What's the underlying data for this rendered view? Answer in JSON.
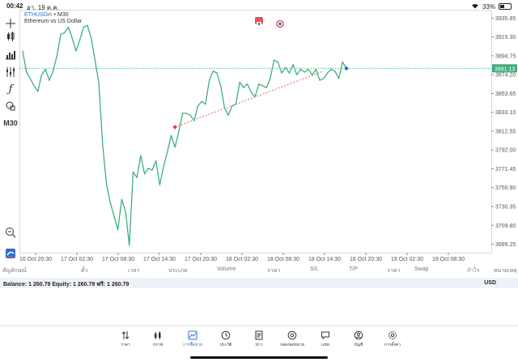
{
  "status_bar": {
    "time": "00:42",
    "date": "อา. 19 ต.ค.",
    "battery": "33%"
  },
  "chart_header": {
    "symbol": "ETHUSDm",
    "timeframe": "M30",
    "description": "Ethereum vs US Dollar"
  },
  "toolbar": {
    "timeframe_label": "M30",
    "icons": [
      "crosshair-icon",
      "candlestick-icon",
      "bar-chart-icon",
      "indicators-icon",
      "function-icon",
      "objects-icon",
      "zoom-icon",
      "app-logo-icon"
    ]
  },
  "chart_data": {
    "type": "line",
    "title": "",
    "xlabel": "",
    "ylabel": "",
    "ylim": [
      3680.0,
      3945.0
    ],
    "y_ticks": [
      "3935.85",
      "3915.30",
      "3894.75",
      "3874.20",
      "3853.65",
      "3833.10",
      "3812.55",
      "3792.00",
      "3771.45",
      "3750.90",
      "3730.35",
      "3709.80",
      "3689.25"
    ],
    "x_ticks": [
      "16 Oct 20:30",
      "17 Oct 02:30",
      "17 Oct 08:30",
      "17 Oct 14:30",
      "17 Oct 20:30",
      "18 Oct 02:30",
      "18 Oct 08:30",
      "18 Oct 14:30",
      "18 Oct 20:30",
      "19 Oct 02:30",
      "19 Oct 08:30"
    ],
    "current_price": "3881.13",
    "current_price_value": 3881.13,
    "line_color": "#3fae7e",
    "price_line_color": "#3fae7e",
    "series": [
      {
        "values": [
          3900,
          3877,
          3870,
          3862,
          3856,
          3874,
          3880,
          3868,
          3878,
          3895,
          3918,
          3920,
          3926,
          3914,
          3900,
          3912,
          3926,
          3928,
          3914,
          3890,
          3865,
          3798,
          3755,
          3735,
          3720,
          3705,
          3738,
          3725,
          3688,
          3768,
          3762,
          3786,
          3766,
          3772,
          3770,
          3780,
          3754,
          3774,
          3790,
          3808,
          3795,
          3812,
          3832,
          3832,
          3830,
          3824,
          3840,
          3845,
          3842,
          3868,
          3878,
          3876,
          3862,
          3838,
          3830,
          3840,
          3842,
          3866,
          3860,
          3864,
          3855,
          3850,
          3864,
          3862,
          3860,
          3870,
          3890,
          3888,
          3876,
          3882,
          3876,
          3885,
          3874,
          3880,
          3877,
          3880,
          3874,
          3880,
          3868,
          3870,
          3876,
          3880,
          3878,
          3870,
          3888,
          3881
        ]
      }
    ],
    "trendline": {
      "start": {
        "x_index": 40,
        "price": 3817
      },
      "end": {
        "x_index": 79,
        "price": 3878
      },
      "color": "#e23d3d"
    }
  },
  "table_header": {
    "columns": [
      "สัญลักษณ์",
      "ตั๋ว",
      "เวลา",
      "ประเภท",
      "Volume",
      "ราคา",
      "S/L",
      "T/P",
      "ราคา",
      "Swap",
      "กำไร",
      "หมายเหตุ"
    ]
  },
  "balance_row": {
    "text": "Balance: 1 260.79 Equity: 1 260.79 ฟรี: 1 260.79",
    "currency": "USD"
  },
  "bottom_nav": {
    "items": [
      {
        "label": "ราคา",
        "icon": "quotes-icon",
        "active": false
      },
      {
        "label": "กราฟ",
        "icon": "chart-icon",
        "active": false
      },
      {
        "label": "การซื้อขาย",
        "icon": "trade-icon",
        "active": true
      },
      {
        "label": "ประวัติ",
        "icon": "history-icon",
        "active": false
      },
      {
        "label": "ข่าว",
        "icon": "news-icon",
        "active": false
      },
      {
        "label": "กล่องจดหมาย",
        "icon": "mailbox-icon",
        "active": false
      },
      {
        "label": "แชท",
        "icon": "chat-icon",
        "active": false
      },
      {
        "label": "บัญชี",
        "icon": "account-icon",
        "active": false
      },
      {
        "label": "การตั้งค่า",
        "icon": "settings-icon",
        "active": false
      }
    ],
    "active_color": "#2d6fd6"
  }
}
